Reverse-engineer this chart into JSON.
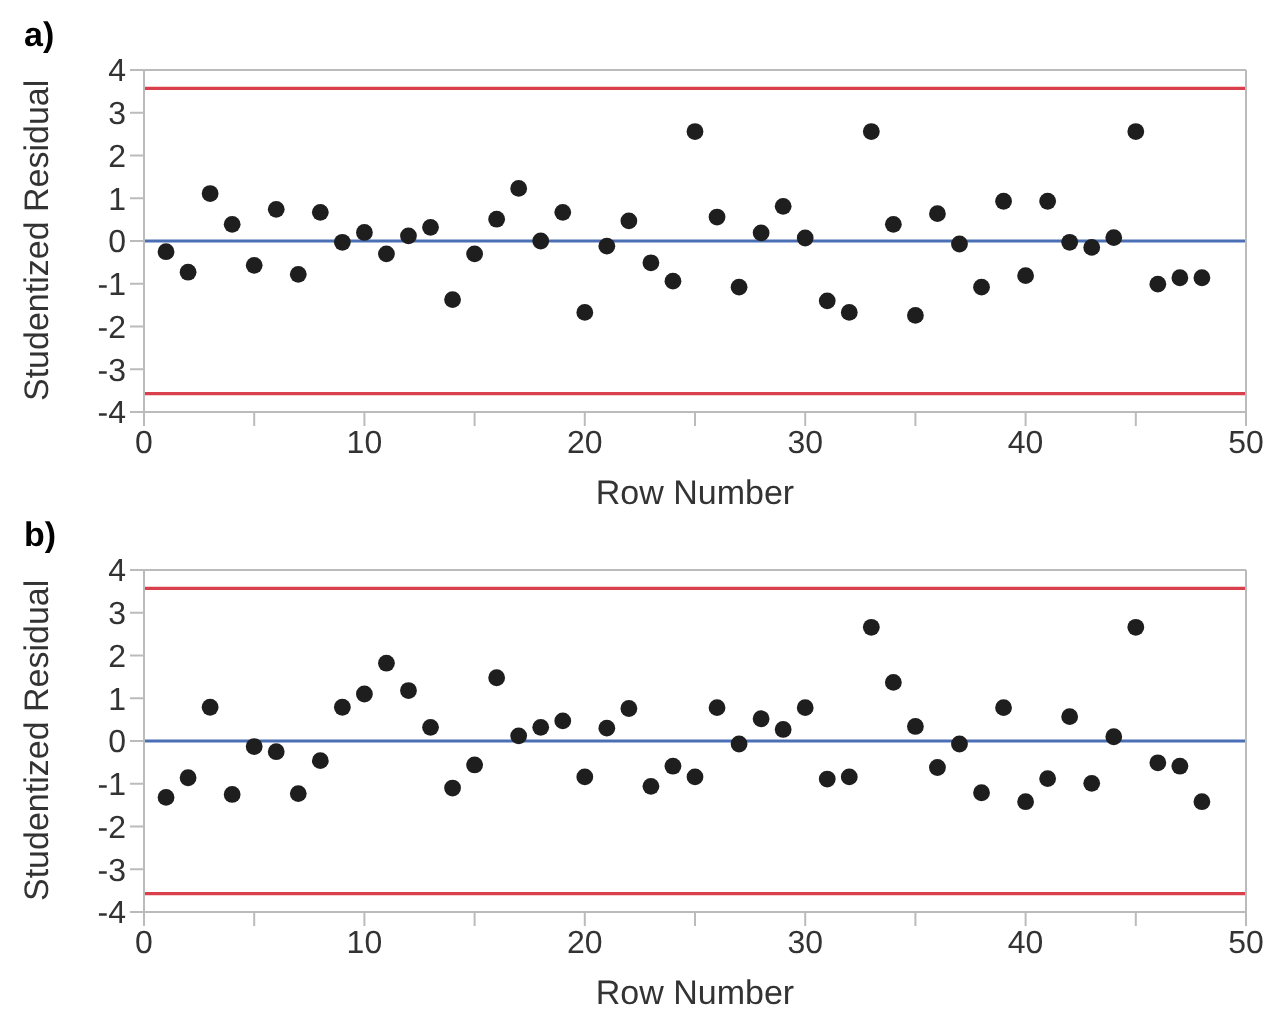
{
  "chart_data": [
    {
      "type": "scatter",
      "title": "a)",
      "xlabel": "Row Number",
      "ylabel": "Studentized Residual",
      "marker": "circle",
      "grid": false,
      "xlim": [
        0,
        50
      ],
      "xticks": [
        0,
        {
          "value": 5,
          "label": null
        },
        10,
        {
          "value": 15,
          "label": null
        },
        20,
        {
          "value": 25,
          "label": null
        },
        30,
        {
          "value": 35,
          "label": null
        },
        40,
        {
          "value": 45,
          "label": null
        },
        50
      ],
      "ylim": [
        -4,
        4
      ],
      "yticks": [
        -4,
        -3,
        -2,
        -1,
        0,
        1,
        2,
        3,
        4
      ],
      "x": [
        1,
        2,
        3,
        4,
        5,
        6,
        7,
        8,
        9,
        10,
        11,
        12,
        13,
        14,
        15,
        16,
        17,
        18,
        19,
        20,
        21,
        22,
        23,
        24,
        25,
        26,
        27,
        28,
        29,
        30,
        31,
        32,
        33,
        34,
        35,
        36,
        37,
        38,
        39,
        40,
        41,
        42,
        43,
        44,
        45,
        46,
        47,
        48
      ],
      "series": [
        {
          "color": "#1e1e1e",
          "values": [
            -0.25,
            -0.73,
            1.11,
            0.39,
            -0.57,
            0.74,
            -0.78,
            0.67,
            -0.03,
            0.2,
            -0.3,
            0.12,
            0.32,
            -1.37,
            -0.3,
            0.51,
            1.23,
            0,
            0.67,
            -1.67,
            -0.12,
            0.47,
            -0.51,
            -0.94,
            2.56,
            0.56,
            -1.08,
            0.19,
            0.81,
            0.07,
            -1.4,
            -1.67,
            2.56,
            0.39,
            -1.74,
            0.64,
            -0.07,
            -1.08,
            0.93,
            -0.81,
            0.93,
            -0.03,
            -0.15,
            0.08,
            2.56,
            -1.01,
            -0.86,
            -0.86
          ]
        }
      ],
      "ref_lines": [
        {
          "axis": "y",
          "value": 3.57,
          "color": "#d9404c"
        },
        {
          "axis": "y",
          "value": -3.57,
          "color": "#d9404c"
        },
        {
          "axis": "y",
          "value": 0,
          "color": "#4a6fb5"
        }
      ]
    },
    {
      "type": "scatter",
      "title": "b)",
      "xlabel": "Row Number",
      "ylabel": "Studentized Residual",
      "marker": "circle",
      "grid": false,
      "xlim": [
        0,
        50
      ],
      "xticks": [
        0,
        {
          "value": 5,
          "label": null
        },
        10,
        {
          "value": 15,
          "label": null
        },
        20,
        {
          "value": 25,
          "label": null
        },
        30,
        {
          "value": 35,
          "label": null
        },
        40,
        {
          "value": 45,
          "label": null
        },
        50
      ],
      "ylim": [
        -4,
        4
      ],
      "yticks": [
        -4,
        -3,
        -2,
        -1,
        0,
        1,
        2,
        3,
        4
      ],
      "x": [
        1,
        2,
        3,
        4,
        5,
        6,
        7,
        8,
        9,
        10,
        11,
        12,
        13,
        14,
        15,
        16,
        17,
        18,
        19,
        20,
        21,
        22,
        23,
        24,
        25,
        26,
        27,
        28,
        29,
        30,
        31,
        32,
        33,
        34,
        35,
        36,
        37,
        38,
        39,
        40,
        41,
        42,
        43,
        44,
        45,
        46,
        47,
        48
      ],
      "series": [
        {
          "color": "#1e1e1e",
          "values": [
            -1.32,
            -0.86,
            0.79,
            -1.25,
            -0.13,
            -0.25,
            -1.23,
            -0.46,
            0.79,
            1.1,
            1.82,
            1.18,
            0.32,
            -1.1,
            -0.56,
            1.48,
            0.12,
            0.32,
            0.47,
            -0.84,
            0.3,
            0.76,
            -1.06,
            -0.59,
            -0.84,
            0.78,
            -0.07,
            0.52,
            0.27,
            0.78,
            -0.89,
            -0.84,
            2.66,
            1.37,
            0.34,
            -0.62,
            -0.07,
            -1.21,
            0.78,
            -1.42,
            -0.88,
            0.57,
            -0.99,
            0.1,
            2.66,
            -0.51,
            -0.59,
            -1.42
          ]
        }
      ],
      "ref_lines": [
        {
          "axis": "y",
          "value": 3.57,
          "color": "#d9404c"
        },
        {
          "axis": "y",
          "value": -3.57,
          "color": "#d9404c"
        },
        {
          "axis": "y",
          "value": 0,
          "color": "#4a6fb5"
        }
      ]
    }
  ]
}
